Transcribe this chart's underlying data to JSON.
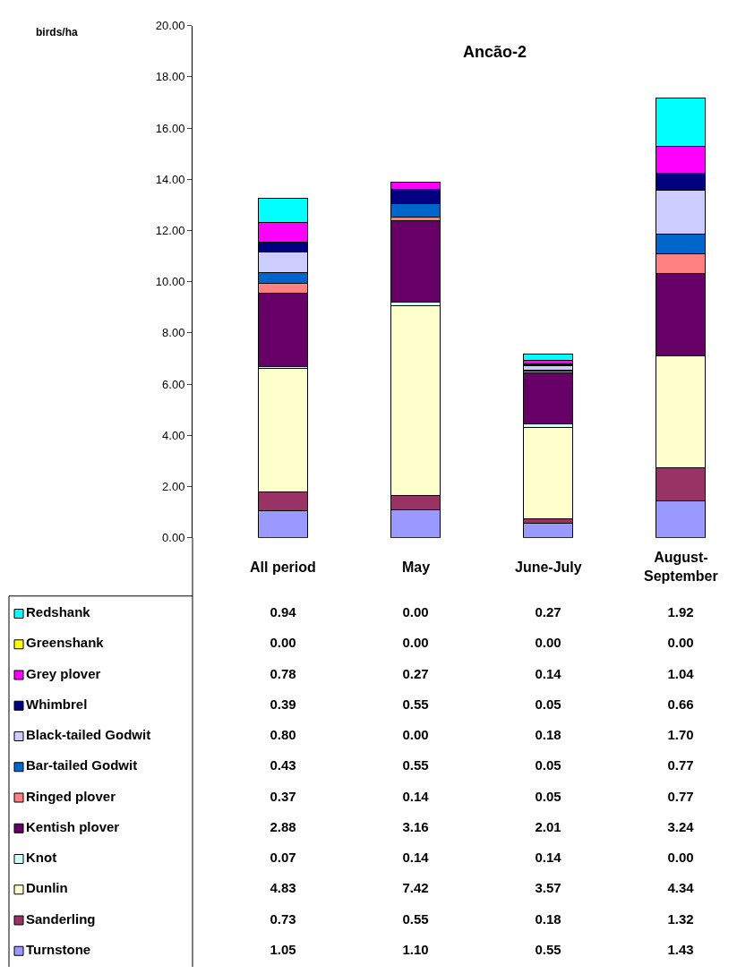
{
  "chart_data": {
    "type": "bar",
    "stacked": true,
    "title": "Ancão-2",
    "categories": [
      "All period",
      "May",
      "June-July",
      "August-September"
    ],
    "series": [
      {
        "name": "Turnstone",
        "color": "#9999ff",
        "values": [
          1.05,
          1.1,
          0.55,
          1.43
        ],
        "value_labels": [
          "1.05",
          "1.10",
          "0.55",
          "1.43"
        ]
      },
      {
        "name": "Sanderling",
        "color": "#993366",
        "values": [
          0.73,
          0.55,
          0.18,
          1.32
        ],
        "value_labels": [
          "0.73",
          "0.55",
          "0.18",
          "1.32"
        ]
      },
      {
        "name": "Dunlin",
        "color": "#ffffcc",
        "values": [
          4.83,
          7.42,
          3.57,
          4.34
        ],
        "value_labels": [
          "4.83",
          "7.42",
          "3.57",
          "4.34"
        ]
      },
      {
        "name": "Knot",
        "color": "#ccffff",
        "values": [
          0.07,
          0.14,
          0.14,
          0.0
        ],
        "value_labels": [
          "0.07",
          "0.14",
          "0.14",
          "0.00"
        ]
      },
      {
        "name": "Kentish plover",
        "color": "#660066",
        "values": [
          2.88,
          3.16,
          2.01,
          3.24
        ],
        "value_labels": [
          "2.88",
          "3.16",
          "2.01",
          "3.24"
        ]
      },
      {
        "name": "Ringed plover",
        "color": "#ff8080",
        "values": [
          0.37,
          0.14,
          0.05,
          0.77
        ],
        "value_labels": [
          "0.37",
          "0.14",
          "0.05",
          "0.77"
        ]
      },
      {
        "name": "Bar-tailed Godwit",
        "color": "#0066cc",
        "values": [
          0.43,
          0.55,
          0.05,
          0.77
        ],
        "value_labels": [
          "0.43",
          "0.55",
          "0.05",
          "0.77"
        ]
      },
      {
        "name": "Black-tailed Godwit",
        "color": "#ccccff",
        "values": [
          0.8,
          0.0,
          0.18,
          1.7
        ],
        "value_labels": [
          "0.80",
          "0.00",
          "0.18",
          "1.70"
        ]
      },
      {
        "name": "Whimbrel",
        "color": "#000080",
        "values": [
          0.39,
          0.55,
          0.05,
          0.66
        ],
        "value_labels": [
          "0.39",
          "0.55",
          "0.05",
          "0.66"
        ]
      },
      {
        "name": "Grey plover",
        "color": "#ff00ff",
        "values": [
          0.78,
          0.27,
          0.14,
          1.04
        ],
        "value_labels": [
          "0.78",
          "0.27",
          "0.14",
          "1.04"
        ]
      },
      {
        "name": "Greenshank",
        "color": "#ffff00",
        "values": [
          0.0,
          0.0,
          0.0,
          0.0
        ],
        "value_labels": [
          "0.00",
          "0.00",
          "0.00",
          "0.00"
        ]
      },
      {
        "name": "Redshank",
        "color": "#00ffff",
        "values": [
          0.94,
          0.0,
          0.27,
          1.92
        ],
        "value_labels": [
          "0.94",
          "0.00",
          "0.27",
          "1.92"
        ]
      }
    ],
    "ylim": [
      0,
      20
    ],
    "yticks": [
      {
        "value": 0,
        "label": "0.00"
      },
      {
        "value": 2,
        "label": "2.00"
      },
      {
        "value": 4,
        "label": "4.00"
      },
      {
        "value": 6,
        "label": "6.00"
      },
      {
        "value": 8,
        "label": "8.00"
      },
      {
        "value": 10,
        "label": "10.00"
      },
      {
        "value": 12,
        "label": "12.00"
      },
      {
        "value": 14,
        "label": "14.00"
      },
      {
        "value": 16,
        "label": "16.00"
      },
      {
        "value": 18,
        "label": "18.00"
      },
      {
        "value": 20,
        "label": "20.00"
      }
    ],
    "annotations": [
      "birds/ha"
    ],
    "grid": false,
    "legend": "bottom left"
  }
}
